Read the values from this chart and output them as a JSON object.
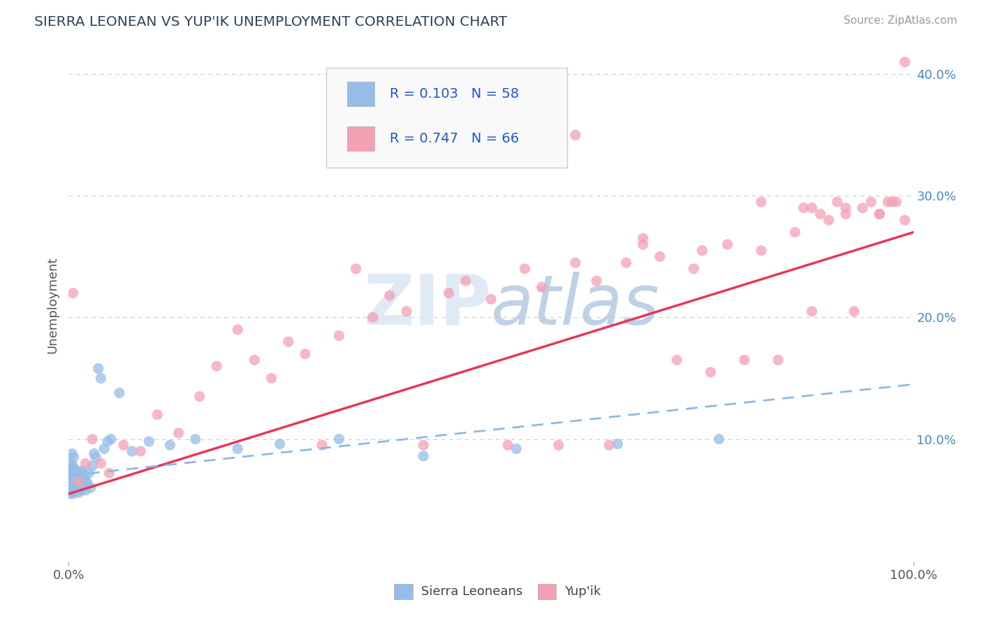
{
  "title": "SIERRA LEONEAN VS YUP'IK UNEMPLOYMENT CORRELATION CHART",
  "source_text": "Source: ZipAtlas.com",
  "ylabel": "Unemployment",
  "xlim": [
    0,
    1.0
  ],
  "ylim": [
    0,
    0.42
  ],
  "ytick_labels": [
    "10.0%",
    "20.0%",
    "30.0%",
    "40.0%"
  ],
  "ytick_values": [
    0.1,
    0.2,
    0.3,
    0.4
  ],
  "legend_labels": [
    "Sierra Leoneans",
    "Yup'ik"
  ],
  "color_sierra": "#95bde8",
  "color_yupik": "#f4a0b5",
  "color_yupik_line": "#e8365a",
  "color_sierra_line": "#90b8e0",
  "background_color": "#ffffff",
  "watermark_color": "#dce8f5",
  "title_color": "#334455",
  "axis_color": "#555555",
  "legend_text_color": "#2255cc",
  "grid_color": "#cccccc",
  "right_tick_color": "#4488cc"
}
